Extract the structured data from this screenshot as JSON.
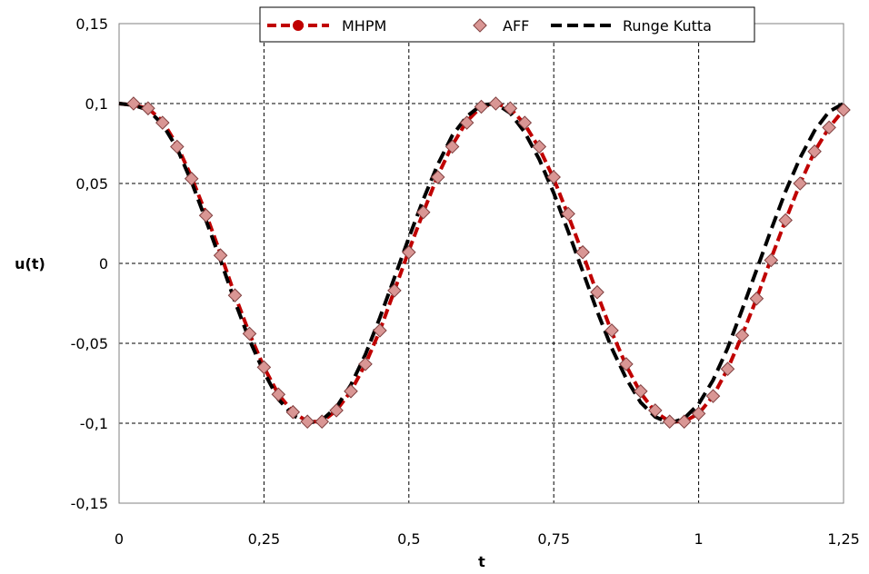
{
  "chart_data": {
    "type": "line",
    "xlabel": "t",
    "ylabel": "u(t)",
    "xlim": [
      0,
      1.25
    ],
    "ylim": [
      -0.15,
      0.15
    ],
    "x_ticks": [
      "0",
      "0,25",
      "0,5",
      "0,75",
      "1",
      "1,25"
    ],
    "y_ticks": [
      "0,15",
      "0,1",
      "0,05",
      "0",
      "-0,05",
      "-0,1",
      "-0,15"
    ],
    "grid": true,
    "legend_position": "top-right",
    "series": [
      {
        "name": "MHPM",
        "style": "dashed-line-with-circle-markers",
        "color": "#c00000",
        "x": [
          0,
          0.025,
          0.05,
          0.075,
          0.1,
          0.125,
          0.15,
          0.175,
          0.2,
          0.225,
          0.25,
          0.275,
          0.3,
          0.325,
          0.35,
          0.375,
          0.4,
          0.425,
          0.45,
          0.475,
          0.5,
          0.525,
          0.55,
          0.575,
          0.6,
          0.625,
          0.65,
          0.675,
          0.7,
          0.725,
          0.75,
          0.775,
          0.8,
          0.825,
          0.85,
          0.875,
          0.9,
          0.925,
          0.95,
          0.975,
          1,
          1.025,
          1.05,
          1.075,
          1.1,
          1.125,
          1.15,
          1.175,
          1.2,
          1.225,
          1.25
        ],
        "y": [
          0.1,
          0.099,
          0.097,
          0.089,
          0.074,
          0.054,
          0.031,
          0.006,
          -0.02,
          -0.044,
          -0.065,
          -0.082,
          -0.093,
          -0.099,
          -0.099,
          -0.092,
          -0.08,
          -0.063,
          -0.042,
          -0.017,
          0.008,
          0.032,
          0.055,
          0.074,
          0.089,
          0.098,
          0.1,
          0.097,
          0.087,
          0.072,
          0.053,
          0.03,
          0.006,
          -0.019,
          -0.043,
          -0.064,
          -0.081,
          -0.093,
          -0.099,
          -0.099,
          -0.094,
          -0.083,
          -0.066,
          -0.045,
          -0.022,
          0.003,
          0.027,
          0.05,
          0.07,
          0.085,
          0.096
        ]
      },
      {
        "name": "AFF",
        "style": "diamond-markers",
        "color": "#d99694",
        "x": [
          0.025,
          0.05,
          0.075,
          0.1,
          0.125,
          0.15,
          0.175,
          0.2,
          0.225,
          0.25,
          0.275,
          0.3,
          0.325,
          0.35,
          0.375,
          0.4,
          0.425,
          0.45,
          0.475,
          0.5,
          0.525,
          0.55,
          0.575,
          0.6,
          0.625,
          0.65,
          0.675,
          0.7,
          0.725,
          0.75,
          0.775,
          0.8,
          0.825,
          0.85,
          0.875,
          0.9,
          0.925,
          0.95,
          0.975,
          1,
          1.025,
          1.05,
          1.075,
          1.1,
          1.125,
          1.15,
          1.175,
          1.2,
          1.225,
          1.25
        ],
        "y": [
          0.1,
          0.097,
          0.088,
          0.073,
          0.053,
          0.03,
          0.005,
          -0.02,
          -0.044,
          -0.065,
          -0.082,
          -0.093,
          -0.099,
          -0.099,
          -0.092,
          -0.08,
          -0.063,
          -0.042,
          -0.017,
          0.007,
          0.032,
          0.054,
          0.073,
          0.088,
          0.098,
          0.1,
          0.097,
          0.088,
          0.073,
          0.054,
          0.031,
          0.007,
          -0.018,
          -0.042,
          -0.063,
          -0.08,
          -0.092,
          -0.099,
          -0.099,
          -0.094,
          -0.083,
          -0.066,
          -0.045,
          -0.022,
          0.002,
          0.027,
          0.05,
          0.07,
          0.085,
          0.096
        ]
      },
      {
        "name": "Runge Kutta",
        "style": "dashed-line",
        "color": "#000000",
        "x": [
          0,
          0.025,
          0.05,
          0.075,
          0.1,
          0.125,
          0.15,
          0.175,
          0.2,
          0.225,
          0.25,
          0.275,
          0.3,
          0.325,
          0.35,
          0.375,
          0.4,
          0.425,
          0.45,
          0.475,
          0.5,
          0.525,
          0.55,
          0.575,
          0.6,
          0.625,
          0.65,
          0.675,
          0.7,
          0.725,
          0.75,
          0.775,
          0.8,
          0.825,
          0.85,
          0.875,
          0.9,
          0.925,
          0.95,
          0.975,
          1,
          1.025,
          1.05,
          1.075,
          1.1,
          1.125,
          1.15,
          1.175,
          1.2,
          1.225,
          1.25
        ],
        "y": [
          0.1,
          0.099,
          0.096,
          0.087,
          0.072,
          0.051,
          0.027,
          0.002,
          -0.024,
          -0.048,
          -0.068,
          -0.085,
          -0.095,
          -0.1,
          -0.098,
          -0.09,
          -0.076,
          -0.057,
          -0.034,
          -0.009,
          0.016,
          0.04,
          0.062,
          0.08,
          0.092,
          0.099,
          0.1,
          0.094,
          0.082,
          0.065,
          0.044,
          0.02,
          -0.005,
          -0.03,
          -0.053,
          -0.072,
          -0.087,
          -0.096,
          -0.1,
          -0.097,
          -0.088,
          -0.073,
          -0.053,
          -0.029,
          -0.004,
          0.021,
          0.045,
          0.066,
          0.083,
          0.095,
          0.1
        ]
      }
    ]
  }
}
